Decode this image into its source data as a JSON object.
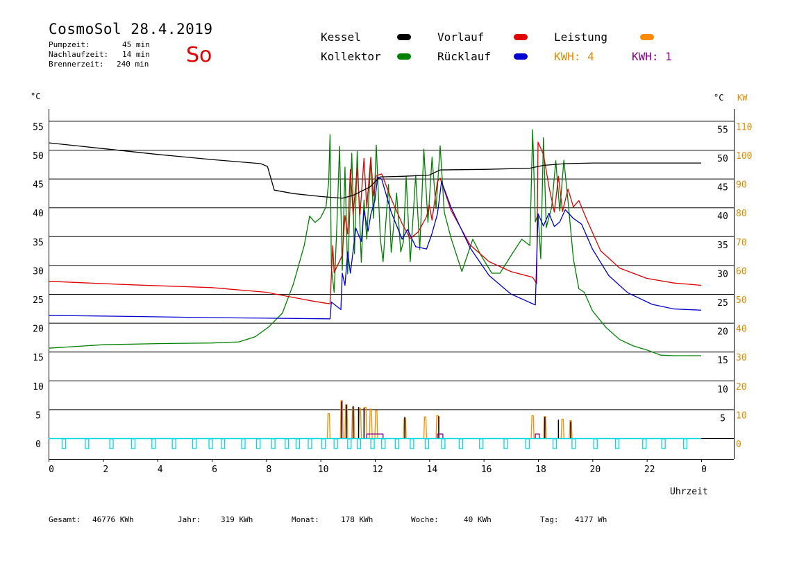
{
  "header": {
    "title": "CosmoSol 28.4.2019",
    "day": "So",
    "info": [
      {
        "label": "Pumpzeit:",
        "value": "45 min"
      },
      {
        "label": "Nachlaufzeit:",
        "value": "14 min"
      },
      {
        "label": "Brennerzeit:",
        "value": "240 min"
      }
    ]
  },
  "legend": {
    "kessel": {
      "label": "Kessel",
      "color": "#000000"
    },
    "kollektor": {
      "label": "Kollektor",
      "color": "#008000"
    },
    "vorlauf": {
      "label": "Vorlauf",
      "color": "#e00000"
    },
    "ruecklauf": {
      "label": "Rücklauf",
      "color": "#0000d0"
    },
    "leistung": {
      "label": "Leistung",
      "color": "#ff8c00"
    },
    "kwh1": {
      "label": "KWH: 4",
      "color": "#e08a00"
    },
    "kwh2": {
      "label": "KWH: 1",
      "color": "#8b008b"
    }
  },
  "chart_data": {
    "type": "line",
    "left_unit": "°C",
    "right_unit_c": "°C",
    "right_unit_kw": "KW",
    "xlabel": "Uhrzeit",
    "x_ticks": [
      "0",
      "2",
      "4",
      "6",
      "8",
      "10",
      "12",
      "14",
      "16",
      "18",
      "20",
      "22",
      "0"
    ],
    "y_left_ticks": [
      "55",
      "50",
      "45",
      "40",
      "35",
      "30",
      "25",
      "20",
      "15",
      "10",
      "5",
      "0"
    ],
    "y_right_c_ticks": [
      "55",
      "50",
      "45",
      "40",
      "35",
      "30",
      "25",
      "20",
      "15",
      "10",
      "5"
    ],
    "y_right_kw_ticks": [
      "110",
      "100",
      "90",
      "80",
      "70",
      "60",
      "50",
      "40",
      "30",
      "20",
      "10",
      "0"
    ],
    "xlim": [
      0,
      24
    ],
    "ylim": [
      0,
      55
    ],
    "series": [
      {
        "name": "Kessel",
        "color": "#000000",
        "points": [
          [
            0,
            51.2
          ],
          [
            2,
            50.2
          ],
          [
            4,
            49.2
          ],
          [
            6,
            48.3
          ],
          [
            7.8,
            47.6
          ],
          [
            8.05,
            47.1
          ],
          [
            8.3,
            43
          ],
          [
            9,
            42.4
          ],
          [
            10,
            41.9
          ],
          [
            10.8,
            41.6
          ],
          [
            11.2,
            42.1
          ],
          [
            11.8,
            43.5
          ],
          [
            12.2,
            45.3
          ],
          [
            13,
            45.4
          ],
          [
            14,
            45.6
          ],
          [
            14.4,
            46.5
          ],
          [
            16,
            46.6
          ],
          [
            17.7,
            46.8
          ],
          [
            18.2,
            47.3
          ],
          [
            19,
            47.6
          ],
          [
            20,
            47.7
          ],
          [
            24,
            47.7
          ]
        ]
      },
      {
        "name": "Vorlauf",
        "color": "#e00000",
        "points": [
          [
            0,
            27.2
          ],
          [
            3,
            26.6
          ],
          [
            6,
            26.1
          ],
          [
            8,
            25.3
          ],
          [
            9,
            24.4
          ],
          [
            9.8,
            23.7
          ],
          [
            10.2,
            23.4
          ],
          [
            10.35,
            23.3
          ],
          [
            10.45,
            33.4
          ],
          [
            10.5,
            28.7
          ],
          [
            10.8,
            31.7
          ],
          [
            10.9,
            38.6
          ],
          [
            11,
            35.4
          ],
          [
            11.1,
            46.6
          ],
          [
            11.2,
            38.7
          ],
          [
            11.35,
            46.8
          ],
          [
            11.45,
            38.7
          ],
          [
            11.6,
            48.5
          ],
          [
            11.7,
            40
          ],
          [
            11.85,
            48.7
          ],
          [
            11.95,
            42
          ],
          [
            12.05,
            45.5
          ],
          [
            12.25,
            45.8
          ],
          [
            12.6,
            41.5
          ],
          [
            13,
            37.2
          ],
          [
            13.3,
            34.6
          ],
          [
            13.6,
            35.8
          ],
          [
            13.9,
            38.4
          ],
          [
            14,
            40.5
          ],
          [
            14.1,
            37.8
          ],
          [
            14.3,
            44.5
          ],
          [
            14.4,
            45.1
          ],
          [
            14.8,
            39.5
          ],
          [
            15.5,
            33.5
          ],
          [
            16.2,
            30.6
          ],
          [
            17,
            28.9
          ],
          [
            17.8,
            27.9
          ],
          [
            17.95,
            26.8
          ],
          [
            18.0,
            51.3
          ],
          [
            18.2,
            49.2
          ],
          [
            18.4,
            43.6
          ],
          [
            18.6,
            39.2
          ],
          [
            18.75,
            45.4
          ],
          [
            18.9,
            39.3
          ],
          [
            19.1,
            43.2
          ],
          [
            19.3,
            40.1
          ],
          [
            19.5,
            41.2
          ],
          [
            19.8,
            37.8
          ],
          [
            20.3,
            32.5
          ],
          [
            21,
            29.5
          ],
          [
            22,
            27.7
          ],
          [
            23,
            26.9
          ],
          [
            24,
            26.5
          ]
        ]
      },
      {
        "name": "Rücklauf",
        "color": "#0000d0",
        "points": [
          [
            0,
            21.3
          ],
          [
            3,
            21.1
          ],
          [
            6,
            20.9
          ],
          [
            8,
            20.8
          ],
          [
            10.3,
            20.7
          ],
          [
            10.35,
            20.7
          ],
          [
            10.4,
            23.6
          ],
          [
            10.75,
            22.3
          ],
          [
            10.8,
            28.6
          ],
          [
            10.9,
            26.5
          ],
          [
            11,
            32.3
          ],
          [
            11.1,
            28.6
          ],
          [
            11.3,
            36.4
          ],
          [
            11.5,
            34.1
          ],
          [
            11.6,
            39.4
          ],
          [
            11.75,
            35.9
          ],
          [
            11.85,
            38.8
          ],
          [
            12,
            41.2
          ],
          [
            12.1,
            45.3
          ],
          [
            12.25,
            44.9
          ],
          [
            12.6,
            39.2
          ],
          [
            13,
            34.5
          ],
          [
            13.2,
            36.2
          ],
          [
            13.5,
            33.2
          ],
          [
            13.9,
            32.8
          ],
          [
            14.1,
            35.5
          ],
          [
            14.3,
            38.9
          ],
          [
            14.45,
            44.5
          ],
          [
            14.8,
            40
          ],
          [
            15.5,
            33
          ],
          [
            16.2,
            28.2
          ],
          [
            17,
            25
          ],
          [
            17.8,
            23.3
          ],
          [
            17.9,
            23.1
          ],
          [
            18.0,
            38.9
          ],
          [
            18.2,
            36.8
          ],
          [
            18.4,
            39
          ],
          [
            18.6,
            36.7
          ],
          [
            18.8,
            37.5
          ],
          [
            19,
            39.6
          ],
          [
            19.3,
            38.1
          ],
          [
            19.6,
            37.1
          ],
          [
            20,
            32.8
          ],
          [
            20.6,
            28.2
          ],
          [
            21.3,
            25.2
          ],
          [
            22.2,
            23.2
          ],
          [
            23,
            22.4
          ],
          [
            24,
            22.2
          ]
        ]
      },
      {
        "name": "Kollektor",
        "color": "#008000",
        "points": [
          [
            0,
            15.6
          ],
          [
            2,
            16.2
          ],
          [
            4,
            16.4
          ],
          [
            6,
            16.5
          ],
          [
            7,
            16.7
          ],
          [
            7.6,
            17.6
          ],
          [
            8.1,
            19.3
          ],
          [
            8.6,
            21.7
          ],
          [
            9,
            26.7
          ],
          [
            9.4,
            33.4
          ],
          [
            9.6,
            38.5
          ],
          [
            9.8,
            37.4
          ],
          [
            10,
            38.2
          ],
          [
            10.2,
            40.1
          ],
          [
            10.3,
            44.3
          ],
          [
            10.35,
            52.6
          ],
          [
            10.4,
            29.6
          ],
          [
            10.5,
            25.3
          ],
          [
            10.6,
            36.8
          ],
          [
            10.7,
            50.6
          ],
          [
            10.8,
            29.1
          ],
          [
            10.9,
            47
          ],
          [
            11.0,
            28.5
          ],
          [
            11.15,
            49.4
          ],
          [
            11.25,
            32
          ],
          [
            11.35,
            49.7
          ],
          [
            11.5,
            30.5
          ],
          [
            11.6,
            41.3
          ],
          [
            11.7,
            34.5
          ],
          [
            11.85,
            48.5
          ],
          [
            11.95,
            38.1
          ],
          [
            12.05,
            50.8
          ],
          [
            12.2,
            34.6
          ],
          [
            12.3,
            30.6
          ],
          [
            12.5,
            44
          ],
          [
            12.6,
            32.2
          ],
          [
            12.8,
            42.5
          ],
          [
            12.95,
            32.3
          ],
          [
            13.05,
            34.1
          ],
          [
            13.15,
            45.4
          ],
          [
            13.3,
            30.6
          ],
          [
            13.5,
            45.6
          ],
          [
            13.65,
            32.7
          ],
          [
            13.8,
            50.1
          ],
          [
            13.95,
            37.4
          ],
          [
            14.1,
            48.7
          ],
          [
            14.25,
            39.8
          ],
          [
            14.4,
            50.7
          ],
          [
            14.55,
            39.2
          ],
          [
            14.8,
            34.7
          ],
          [
            15.2,
            28.9
          ],
          [
            15.6,
            34.5
          ],
          [
            15.9,
            31.7
          ],
          [
            16.3,
            28.6
          ],
          [
            16.6,
            28.6
          ],
          [
            17,
            31.6
          ],
          [
            17.4,
            34.5
          ],
          [
            17.7,
            33.4
          ],
          [
            17.8,
            53.5
          ],
          [
            17.9,
            37.5
          ],
          [
            18,
            38.9
          ],
          [
            18.1,
            31.1
          ],
          [
            18.2,
            52.1
          ],
          [
            18.3,
            36.5
          ],
          [
            18.5,
            40
          ],
          [
            18.65,
            48.1
          ],
          [
            18.8,
            39.4
          ],
          [
            18.95,
            48.2
          ],
          [
            19.1,
            41.2
          ],
          [
            19.3,
            31.1
          ],
          [
            19.5,
            25.9
          ],
          [
            19.7,
            25.3
          ],
          [
            20,
            22.1
          ],
          [
            20.5,
            19.2
          ],
          [
            21,
            17.1
          ],
          [
            21.5,
            16
          ],
          [
            22,
            15.3
          ],
          [
            22.5,
            14.4
          ],
          [
            23,
            14.3
          ],
          [
            24,
            14.3
          ]
        ]
      }
    ],
    "leistung_peaks": [
      [
        10.3,
        8.5
      ],
      [
        10.78,
        13
      ],
      [
        10.95,
        11.6
      ],
      [
        11.2,
        10.7
      ],
      [
        11.45,
        10.4
      ],
      [
        11.65,
        10.7
      ],
      [
        11.85,
        10.1
      ],
      [
        12.05,
        9.6
      ],
      [
        13.1,
        6.9
      ],
      [
        13.85,
        7.4
      ],
      [
        14.3,
        7.8
      ],
      [
        17.8,
        7.8
      ],
      [
        18.25,
        7.5
      ],
      [
        18.9,
        6.6
      ],
      [
        19.2,
        6.1
      ]
    ],
    "kessel_spikes": [
      [
        10.78,
        6.4
      ],
      [
        10.95,
        5.8
      ],
      [
        11.2,
        5.6
      ],
      [
        11.4,
        5.4
      ],
      [
        11.6,
        5.3
      ],
      [
        13.1,
        3.7
      ],
      [
        14.35,
        3.8
      ],
      [
        18.25,
        3.7
      ],
      [
        18.75,
        3.2
      ],
      [
        19.2,
        2.9
      ]
    ],
    "pump_marks": [
      0.55,
      1.4,
      2.3,
      3.1,
      3.85,
      4.6,
      5.35,
      5.95,
      6.4,
      7.15,
      7.7,
      8.25,
      8.75,
      9.15,
      9.6,
      10.1,
      10.55,
      11.05,
      11.4,
      11.9,
      12.3,
      12.8,
      13.35,
      13.9,
      14.5,
      15.15,
      15.9,
      16.8,
      17.6,
      18.6,
      19.3,
      20.1,
      20.9,
      21.9,
      22.6,
      23.4
    ]
  },
  "footer": [
    {
      "label": "Gesamt:",
      "value": "46776 KWh"
    },
    {
      "label": "Jahr:",
      "value": "319 KWh"
    },
    {
      "label": "Monat:",
      "value": "178 KWh"
    },
    {
      "label": "Woche:",
      "value": "40 KWh"
    },
    {
      "label": "Tag:",
      "value": "4177 Wh"
    }
  ]
}
